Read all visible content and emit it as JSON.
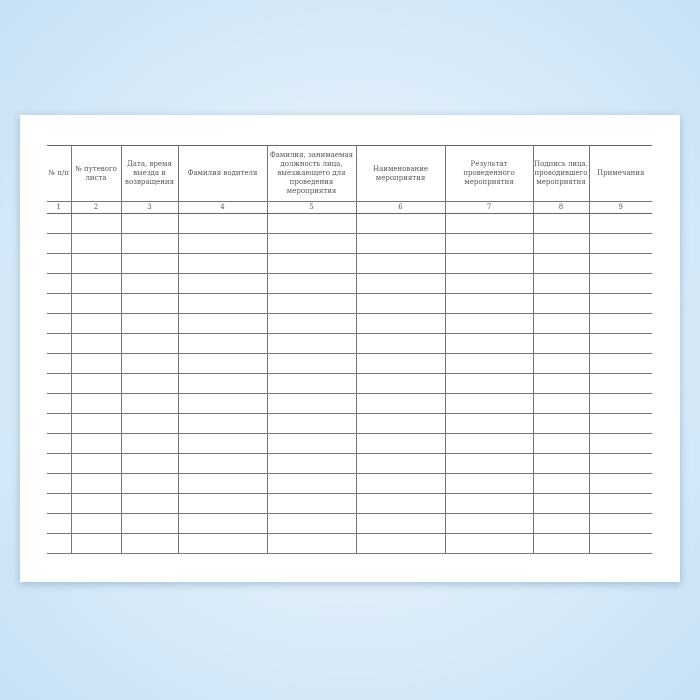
{
  "headers": [
    "№ п/п",
    "№ путевого листа",
    "Дата, время выезда и возвращения",
    "Фамилия водителя",
    "Фамилия, занимаемая должность лица, выезжающего для проведения мероприятия",
    "Наименование мероприятия",
    "Результат проведенного мероприятия",
    "Подпись лица, проводившего мероприятия",
    "Примечания"
  ],
  "column_numbers": [
    "1",
    "2",
    "3",
    "4",
    "5",
    "6",
    "7",
    "8",
    "9"
  ],
  "empty_rows": 17
}
